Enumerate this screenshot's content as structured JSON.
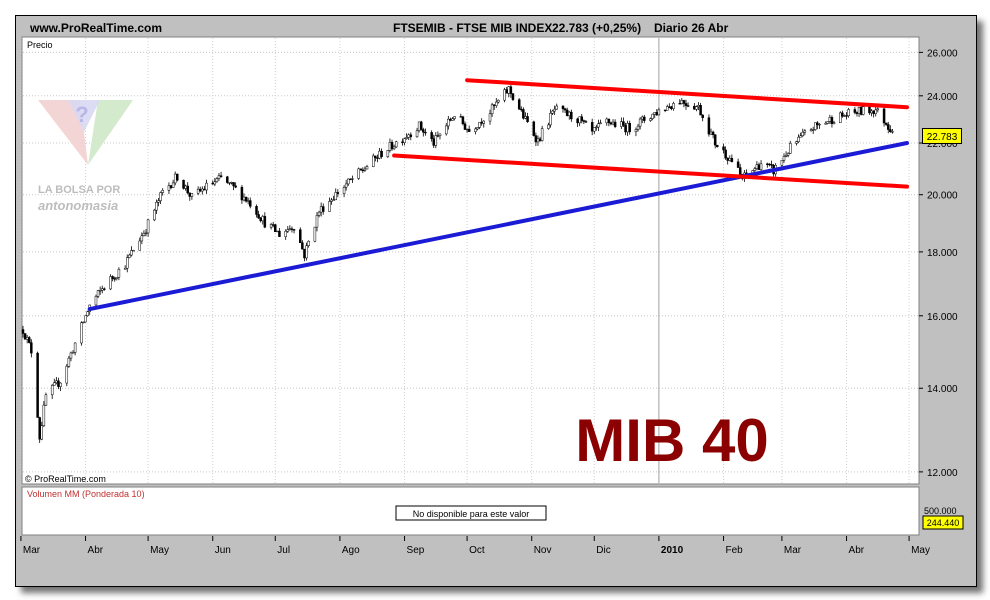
{
  "header": {
    "site": "www.ProRealTime.com",
    "instrument": "FTSEMIB - FTSE MIB INDEX",
    "quote": "22.783 (+0,25%)",
    "period": "Diario  26 Abr"
  },
  "panel_label": "Precio",
  "copyright": "© ProRealTime.com",
  "watermark": {
    "line1": "LA BOLSA POR",
    "line2": "antonomasia"
  },
  "big_label": "MIB 40",
  "last_price_label": "22.783",
  "volume": {
    "title": "Volumen MM (Ponderada 10)",
    "message": "No disponible para este valor",
    "axis_label": "500.000",
    "value_label": "244.440"
  },
  "colors": {
    "background": "#ffffff",
    "frame": "#c0c0c0",
    "candles": "#000000",
    "channel": "#ff0000",
    "trend": "#1b1bd6",
    "big_label": "#8b0000",
    "volume_title": "#c03030"
  },
  "chart_data": {
    "type": "candlestick",
    "x_start": "2009-03-02",
    "x_end": "2010-04-30",
    "ylim": [
      11800,
      26600
    ],
    "yscale": "log",
    "y_ticks": [
      12000,
      14000,
      16000,
      18000,
      20000,
      22000,
      24000,
      26000
    ],
    "y_tick_labels": [
      "12.000",
      "14.000",
      "16.000",
      "18.000",
      "20.000",
      "22.000",
      "24.000",
      "26.000"
    ],
    "x_ticks": [
      {
        "label": "Mar",
        "date": "2009-03-01"
      },
      {
        "label": "Abr",
        "date": "2009-04-01"
      },
      {
        "label": "May",
        "date": "2009-05-01"
      },
      {
        "label": "Jun",
        "date": "2009-06-01"
      },
      {
        "label": "Jul",
        "date": "2009-07-01"
      },
      {
        "label": "Ago",
        "date": "2009-08-01"
      },
      {
        "label": "Sep",
        "date": "2009-09-01"
      },
      {
        "label": "Oct",
        "date": "2009-10-01"
      },
      {
        "label": "Nov",
        "date": "2009-11-01"
      },
      {
        "label": "Dic",
        "date": "2009-12-01"
      },
      {
        "label": "2010",
        "date": "2010-01-01"
      },
      {
        "label": "Feb",
        "date": "2010-02-01"
      },
      {
        "label": "Mar",
        "date": "2010-03-01"
      },
      {
        "label": "Abr",
        "date": "2010-04-01"
      },
      {
        "label": "May",
        "date": "2010-05-01"
      }
    ],
    "price_path": [
      {
        "date": "2009-03-02",
        "close": 15600
      },
      {
        "date": "2009-03-06",
        "close": 15000
      },
      {
        "date": "2009-03-10",
        "close": 12800
      },
      {
        "date": "2009-03-13",
        "close": 13800
      },
      {
        "date": "2009-03-20",
        "close": 14200
      },
      {
        "date": "2009-03-27",
        "close": 15200
      },
      {
        "date": "2009-04-03",
        "close": 16300
      },
      {
        "date": "2009-04-10",
        "close": 16900
      },
      {
        "date": "2009-04-20",
        "close": 17600
      },
      {
        "date": "2009-04-30",
        "close": 18800
      },
      {
        "date": "2009-05-08",
        "close": 20100
      },
      {
        "date": "2009-05-15",
        "close": 20700
      },
      {
        "date": "2009-05-22",
        "close": 19900
      },
      {
        "date": "2009-05-29",
        "close": 20300
      },
      {
        "date": "2009-06-05",
        "close": 20600
      },
      {
        "date": "2009-06-12",
        "close": 20200
      },
      {
        "date": "2009-06-19",
        "close": 19700
      },
      {
        "date": "2009-06-26",
        "close": 19000
      },
      {
        "date": "2009-07-03",
        "close": 18600
      },
      {
        "date": "2009-07-10",
        "close": 18900
      },
      {
        "date": "2009-07-15",
        "close": 17900
      },
      {
        "date": "2009-07-22",
        "close": 19400
      },
      {
        "date": "2009-07-31",
        "close": 20100
      },
      {
        "date": "2009-08-10",
        "close": 20800
      },
      {
        "date": "2009-08-21",
        "close": 21600
      },
      {
        "date": "2009-08-31",
        "close": 22200
      },
      {
        "date": "2009-09-08",
        "close": 22700
      },
      {
        "date": "2009-09-15",
        "close": 22000
      },
      {
        "date": "2009-09-25",
        "close": 23200
      },
      {
        "date": "2009-10-02",
        "close": 22500
      },
      {
        "date": "2009-10-12",
        "close": 23300
      },
      {
        "date": "2009-10-21",
        "close": 24300
      },
      {
        "date": "2009-10-28",
        "close": 23100
      },
      {
        "date": "2009-11-04",
        "close": 22100
      },
      {
        "date": "2009-11-12",
        "close": 23400
      },
      {
        "date": "2009-11-23",
        "close": 23000
      },
      {
        "date": "2009-11-30",
        "close": 22400
      },
      {
        "date": "2009-12-07",
        "close": 22900
      },
      {
        "date": "2009-12-18",
        "close": 22600
      },
      {
        "date": "2009-12-31",
        "close": 23300
      },
      {
        "date": "2010-01-11",
        "close": 23800
      },
      {
        "date": "2010-01-20",
        "close": 23500
      },
      {
        "date": "2010-01-28",
        "close": 22000
      },
      {
        "date": "2010-02-05",
        "close": 21300
      },
      {
        "date": "2010-02-10",
        "close": 20600
      },
      {
        "date": "2010-02-19",
        "close": 21200
      },
      {
        "date": "2010-02-25",
        "close": 20900
      },
      {
        "date": "2010-03-05",
        "close": 21800
      },
      {
        "date": "2010-03-15",
        "close": 22600
      },
      {
        "date": "2010-03-25",
        "close": 23000
      },
      {
        "date": "2010-04-06",
        "close": 23300
      },
      {
        "date": "2010-04-15",
        "close": 23400
      },
      {
        "date": "2010-04-22",
        "close": 22600
      },
      {
        "date": "2010-04-26",
        "close": 22783
      }
    ],
    "lines": [
      {
        "name": "",
        "color": "#1b1bd6",
        "points": [
          {
            "date": "2009-04-03",
            "value": 16200
          },
          {
            "date": "2010-04-30",
            "value": 22000
          }
        ]
      },
      {
        "name": "",
        "color": "#ff0000",
        "points": [
          {
            "date": "2009-10-01",
            "value": 24700
          },
          {
            "date": "2010-04-30",
            "value": 23500
          }
        ]
      },
      {
        "name": "",
        "color": "#ff0000",
        "points": [
          {
            "date": "2009-08-27",
            "value": 21500
          },
          {
            "date": "2010-04-30",
            "value": 20300
          }
        ]
      }
    ]
  }
}
